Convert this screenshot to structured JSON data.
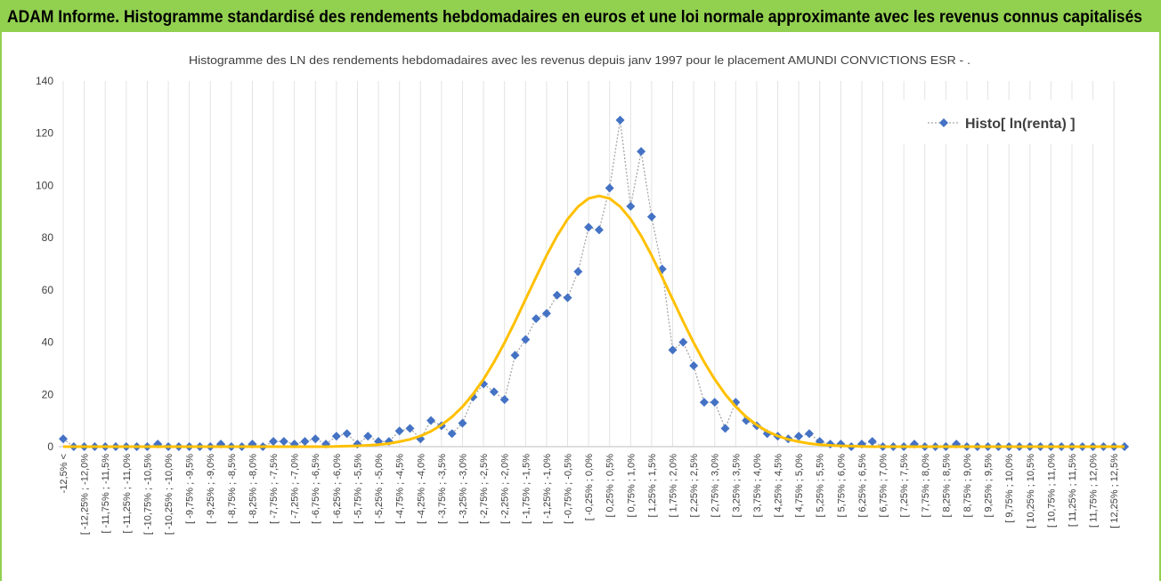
{
  "header": {
    "title": "ADAM Informe. Histogramme standardisé des rendements hebdomadaires en euros et une loi normale approximante avec les revenus connus capitalisés"
  },
  "chart_data": {
    "type": "line",
    "title": "Histogramme  des LN des rendements hebdomadaires avec les revenus depuis janv 1997 pour le placement AMUNDI CONVICTIONS ESR - .",
    "categories": [
      "-12,5% <",
      null,
      "[ -12,25% ; -12,0%",
      null,
      "[ -11,75% ; -11,5%",
      null,
      "[ -11,25% ; -11,0%",
      null,
      "[ -10,75% ; -10,5%",
      null,
      "[ -10,25% ; -10,0%",
      null,
      "[ -9,75% ; -9,5%",
      null,
      "[ -9,25% ; -9,0%",
      null,
      "[ -8,75% ; -8,5%",
      null,
      "[ -8,25% ; -8,0%",
      null,
      "[ -7,75% ; -7,5%",
      null,
      "[ -7,25% ; -7,0%",
      null,
      "[ -6,75% ; -6,5%",
      null,
      "[ -6,25% ; -6,0%",
      null,
      "[ -5,75% ; -5,5%",
      null,
      "[ -5,25% ; -5,0%",
      null,
      "[ -4,75% ; -4,5%",
      null,
      "[ -4,25% ; -4,0%",
      null,
      "[ -3,75% ; -3,5%",
      null,
      "[ -3,25% ; -3,0%",
      null,
      "[ -2,75% ; -2,5%",
      null,
      "[ -2,25% ; -2,0%",
      null,
      "[ -1,75% ; -1,5%",
      null,
      "[ -1,25% ; -1,0%",
      null,
      "[ -0,75% ; -0,5%",
      null,
      "[ -0,25% ; 0,0%",
      null,
      "[ 0,25% ; 0,5%",
      null,
      "[ 0,75% ; 1,0%",
      null,
      "[ 1,25% ; 1,5%",
      null,
      "[ 1,75% ; 2,0%",
      null,
      "[ 2,25% ; 2,5%",
      null,
      "[ 2,75% ; 3,0%",
      null,
      "[ 3,25% ; 3,5%",
      null,
      "[ 3,75% ; 4,0%",
      null,
      "[ 4,25% ; 4,5%",
      null,
      "[ 4,75% ; 5,0%",
      null,
      "[ 5,25% ; 5,5%",
      null,
      "[ 5,75% ; 6,0%",
      null,
      "[ 6,25% ; 6,5%",
      null,
      "[ 6,75% ; 7,0%",
      null,
      "[ 7,25% ; 7,5%",
      null,
      "[ 7,75% ; 8,0%",
      null,
      "[ 8,25% ; 8,5%",
      null,
      "[ 8,75% ; 9,0%",
      null,
      "[ 9,25% ; 9,5%",
      null,
      "[ 9,75% ; 10,0%",
      null,
      "[ 10,25% ; 10,5%",
      null,
      "[ 10,75% ; 11,0%",
      null,
      "[ 11,25% ; 11,5%",
      null,
      "[ 11,75% ; 12,0%",
      null,
      "[ 12,25% ; 12,5%",
      null
    ],
    "series": [
      {
        "name": "Histo[ ln(renta) ]",
        "color": "#4472c4",
        "values": [
          3,
          0,
          0,
          0,
          0,
          0,
          0,
          0,
          0,
          1,
          0,
          0,
          0,
          0,
          0,
          1,
          0,
          0,
          1,
          0,
          2,
          2,
          1,
          2,
          3,
          1,
          4,
          5,
          1,
          4,
          2,
          2,
          6,
          7,
          3,
          10,
          8,
          5,
          9,
          19,
          24,
          21,
          18,
          35,
          41,
          49,
          51,
          58,
          57,
          67,
          84,
          83,
          99,
          125,
          92,
          113,
          88,
          68,
          37,
          40,
          31,
          17,
          17,
          7,
          17,
          10,
          8,
          5,
          4,
          3,
          4,
          5,
          2,
          1,
          1,
          0,
          1,
          2,
          0,
          0,
          0,
          1,
          0,
          0,
          0,
          1,
          0,
          0,
          0,
          0,
          0,
          0,
          0,
          0,
          0,
          0,
          0,
          0,
          0,
          0,
          0,
          0
        ]
      },
      {
        "color": "#ffc000",
        "values": [
          0,
          0,
          0,
          0,
          0,
          0,
          0,
          0,
          0,
          0,
          0,
          0,
          0,
          0,
          0,
          0,
          0,
          0,
          0,
          0,
          0,
          0,
          0,
          0,
          0,
          0,
          0.1,
          0.2,
          0.3,
          0.5,
          0.8,
          1.2,
          1.9,
          2.8,
          4.1,
          5.9,
          8.3,
          11.4,
          15.3,
          20.1,
          25.8,
          32.4,
          39.8,
          47.9,
          56.4,
          64.9,
          73.2,
          80.7,
          87.1,
          91.9,
          95.0,
          96,
          95.0,
          91.9,
          87.1,
          80.7,
          73.2,
          64.9,
          56.4,
          47.9,
          39.8,
          32.4,
          25.8,
          20.1,
          15.3,
          11.4,
          8.3,
          5.9,
          4.1,
          2.8,
          1.9,
          1.2,
          0.8,
          0.5,
          0.3,
          0.2,
          0.1,
          0,
          0,
          0,
          0,
          0,
          0,
          0,
          0,
          0,
          0,
          0,
          0,
          0,
          0,
          0,
          0,
          0,
          0,
          0,
          0,
          0,
          0,
          0,
          0,
          0
        ]
      }
    ],
    "ylim": [
      0,
      140
    ],
    "yticks": [
      0,
      20,
      40,
      60,
      80,
      100,
      120,
      140
    ],
    "xgrid": true,
    "legend": "top-right"
  }
}
